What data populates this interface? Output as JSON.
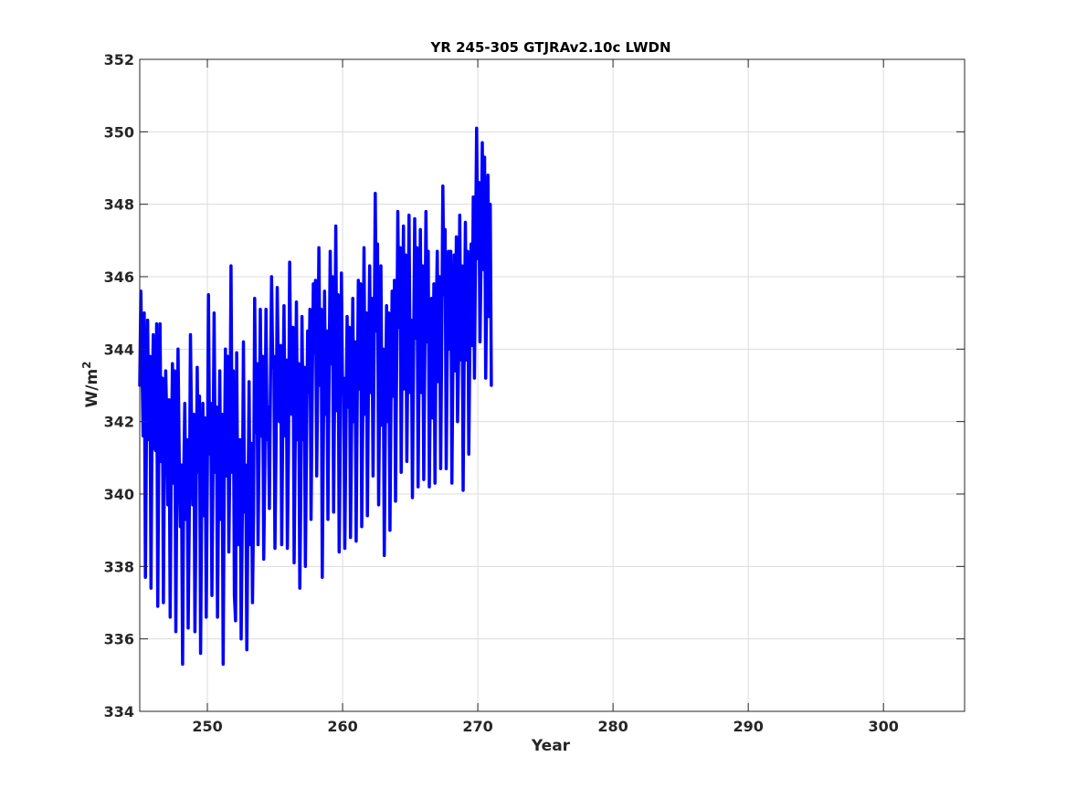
{
  "chart_data": {
    "type": "line",
    "title": "YR 245-305 GTJRAv2.10c LWDN",
    "xlabel": "Year",
    "ylabel": "W/m",
    "ylabel_superscript": "2",
    "xlim": [
      245,
      306
    ],
    "ylim": [
      334,
      352
    ],
    "xticks": [
      "250",
      "260",
      "270",
      "280",
      "290",
      "300"
    ],
    "xtick_values": [
      250,
      260,
      270,
      280,
      290,
      300
    ],
    "yticks": [
      "334",
      "336",
      "338",
      "340",
      "342",
      "344",
      "346",
      "348",
      "350",
      "352"
    ],
    "ytick_values": [
      334,
      336,
      338,
      340,
      342,
      344,
      346,
      348,
      350,
      352
    ],
    "grid": true,
    "series": [
      {
        "color": "#0000ff",
        "x_start": 245.0,
        "x_step": 0.0833333,
        "values": [
          343.0,
          345.6,
          343.5,
          341.6,
          345.0,
          337.7,
          342.0,
          344.8,
          341.5,
          343.8,
          337.4,
          342.5,
          344.4,
          341.3,
          341.2,
          344.7,
          336.9,
          342.0,
          344.7,
          340.9,
          343.2,
          337.0,
          341.5,
          343.4,
          342.0,
          339.7,
          342.6,
          336.6,
          341.0,
          343.6,
          340.3,
          343.4,
          336.2,
          340.7,
          344.0,
          341.0,
          339.1,
          340.8,
          335.3,
          340.4,
          342.5,
          339.3,
          341.5,
          336.3,
          339.6,
          344.4,
          341.8,
          339.7,
          342.2,
          336.2,
          339.8,
          343.5,
          340.6,
          342.7,
          335.6,
          339.9,
          342.5,
          339.4,
          342.1,
          336.6,
          340.6,
          345.5,
          341.1,
          342.5,
          337.2,
          340.8,
          345.0,
          340.6,
          342.4,
          336.6,
          340.3,
          343.4,
          339.3,
          342.2,
          335.3,
          340.5,
          344.0,
          340.5,
          343.8,
          338.4,
          341.2,
          346.3,
          340.6,
          343.4,
          337.2,
          336.5,
          343.9,
          339.5,
          338.6,
          341.5,
          336.0,
          339.5,
          344.2,
          339.5,
          340.8,
          335.7,
          339.3,
          343.1,
          338.6,
          341.4,
          337.0,
          339.5,
          345.4,
          341.7,
          343.6,
          338.6,
          341.8,
          345.1,
          341.6,
          343.8,
          338.2,
          340.7,
          345.1,
          341.5,
          342.4,
          339.6,
          343.0,
          346.0,
          343.5,
          343.8,
          338.5,
          341.6,
          345.7,
          343.3,
          342.0,
          344.1,
          338.6,
          342.4,
          345.2,
          341.6,
          343.7,
          338.5,
          341.2,
          346.4,
          343.5,
          342.2,
          344.6,
          338.1,
          341.5,
          345.3,
          341.5,
          343.6,
          337.4,
          340.2,
          344.9,
          341.5,
          343.5,
          338.0,
          341.5,
          344.5,
          342.8,
          345.1,
          339.3,
          342.5,
          345.8,
          343.9,
          345.9,
          340.5,
          343.2,
          346.8,
          343.0,
          345.1,
          337.7,
          341.8,
          345.6,
          342.2,
          344.5,
          339.3,
          343.1,
          346.7,
          343.6,
          346.0,
          339.5,
          343.0,
          347.4,
          342.3,
          345.5,
          338.4,
          341.9,
          346.1,
          342.8,
          343.2,
          338.5,
          341.7,
          344.9,
          342.4,
          344.6,
          338.8,
          341.8,
          345.4,
          342.0,
          344.2,
          338.7,
          342.7,
          345.9,
          342.9,
          345.8,
          339.1,
          342.5,
          346.8,
          342.2,
          345.0,
          339.4,
          343.2,
          346.3,
          342.8,
          345.4,
          340.5,
          344.1,
          348.3,
          344.5,
          346.9,
          339.7,
          343.2,
          346.3,
          341.9,
          344.0,
          338.3,
          342.1,
          345.2,
          342.0,
          345.0,
          339.0,
          342.8,
          345.6,
          342.7,
          345.9,
          339.8,
          343.8,
          347.8,
          344.6,
          346.8,
          340.6,
          344.4,
          347.4,
          342.9,
          346.6,
          340.9,
          344.2,
          347.7,
          342.8,
          344.8,
          339.9,
          343.9,
          347.6,
          344.3,
          346.8,
          340.2,
          343.7,
          347.3,
          342.8,
          346.3,
          340.4,
          343.9,
          347.8,
          344.2,
          346.7,
          340.2,
          343.5,
          345.4,
          342.1,
          345.8,
          340.3,
          344.6,
          346.7,
          343.1,
          346.0,
          340.7,
          344.3,
          348.5,
          345.5,
          347.3,
          340.7,
          344.4,
          346.7,
          344.0,
          346.7,
          340.3,
          343.8,
          346.6,
          343.4,
          347.1,
          342.0,
          343.8,
          347.7,
          343.7,
          346.3,
          340.1,
          344.3,
          347.5,
          343.7,
          346.7,
          341.1,
          344.2,
          346.9,
          344.1,
          348.2,
          343.2,
          346.8,
          350.1,
          346.5,
          348.6,
          344.2,
          346.8,
          349.7,
          346.2,
          349.3,
          343.2,
          346.0,
          348.8,
          344.9,
          348.0,
          343.0
        ]
      }
    ]
  }
}
